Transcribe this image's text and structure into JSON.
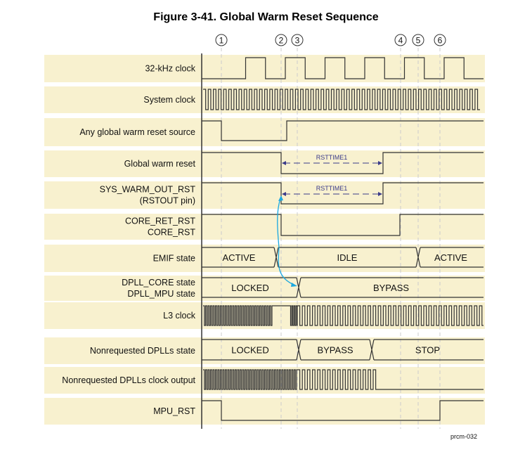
{
  "title": "Figure 3-41. Global Warm Reset Sequence",
  "markers": [
    "1",
    "2",
    "3",
    "4",
    "5",
    "6"
  ],
  "signals": [
    {
      "label": [
        "32-kHz clock"
      ]
    },
    {
      "label": [
        "System clock"
      ]
    },
    {
      "label": [
        "Any global warm reset source"
      ]
    },
    {
      "label": [
        "Global warm reset"
      ],
      "annotation": "RSTTIME1"
    },
    {
      "label": [
        "SYS_WARM_OUT_RST",
        "(RSTOUT pin)"
      ],
      "annotation": "RSTTIME1"
    },
    {
      "label": [
        "CORE_RET_RST",
        "CORE_RST"
      ]
    },
    {
      "label": [
        "EMIF state"
      ],
      "states": [
        "ACTIVE",
        "IDLE",
        "ACTIVE"
      ]
    },
    {
      "label": [
        "DPLL_CORE state",
        "DPLL_MPU state"
      ],
      "states": [
        "LOCKED",
        "BYPASS"
      ]
    },
    {
      "label": [
        "L3 clock"
      ]
    },
    {
      "label": [
        "Nonrequested DPLLs state"
      ],
      "states": [
        "LOCKED",
        "BYPASS",
        "STOP"
      ]
    },
    {
      "label": [
        "Nonrequested DPLLs clock output"
      ]
    },
    {
      "label": [
        "MPU_RST"
      ]
    }
  ],
  "figure_id": "prcm-032",
  "colors": {
    "band": "#f8f1cf",
    "signal": "#333333",
    "arrow": "#1ba8e0",
    "annotation": "#3a3a8a"
  }
}
